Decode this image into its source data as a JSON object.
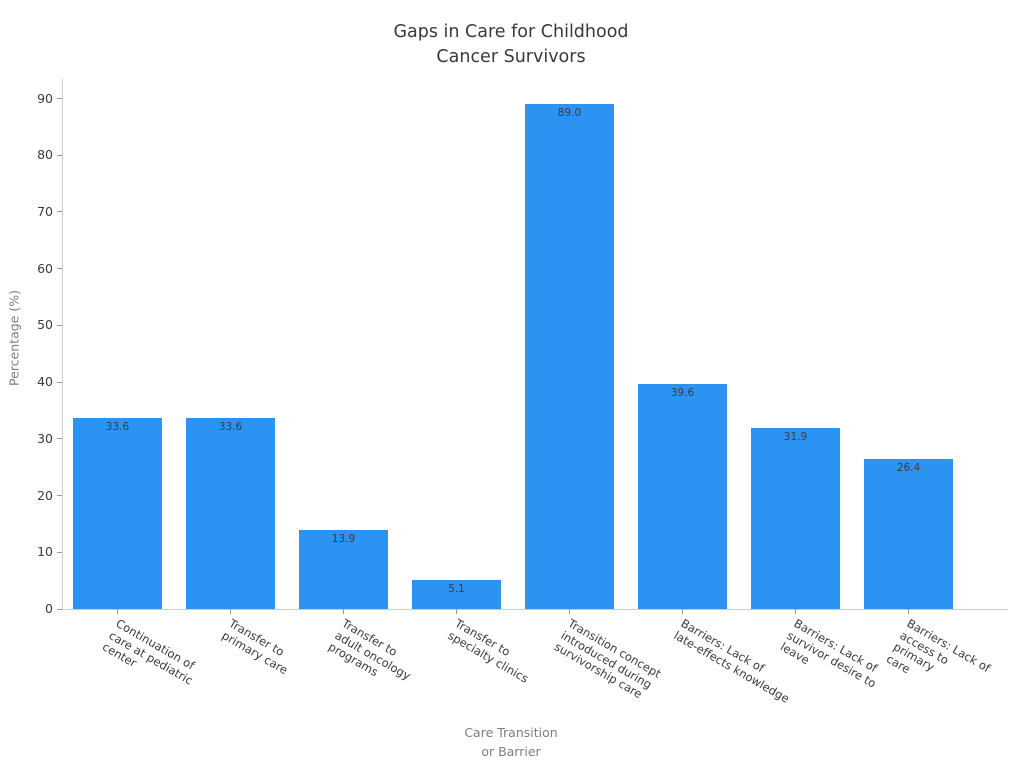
{
  "chart_data": {
    "type": "bar",
    "title": "Gaps in Care for Childhood\nCancer Survivors",
    "xlabel": "Care Transition\nor Barrier",
    "ylabel": "Percentage (%)",
    "categories": [
      "Continuation of\ncare at pediatric\ncenter",
      "Transfer to\nprimary care",
      "Transfer to\nadult oncology\nprograms",
      "Transfer to\nspecialty clinics",
      "Transition concept\nintroduced during\nsurvivorship care",
      "Barriers: Lack of\nlate-effects knowledge",
      "Barriers: Lack of\nsurvivor desire to\nleave",
      "Barriers: Lack of\naccess to primary\ncare"
    ],
    "values": [
      33.6,
      33.6,
      13.9,
      5.1,
      89.0,
      39.6,
      31.9,
      26.4
    ],
    "value_labels": [
      "33.6",
      "33.6",
      "13.9",
      "5.1",
      "89.0",
      "39.6",
      "31.9",
      "26.4"
    ],
    "yticks": [
      0,
      10,
      20,
      30,
      40,
      50,
      60,
      70,
      80,
      90
    ],
    "ylim": [
      0,
      93.45
    ],
    "bar_color": "#2d93f2",
    "grid": false,
    "legend_position": "none"
  }
}
